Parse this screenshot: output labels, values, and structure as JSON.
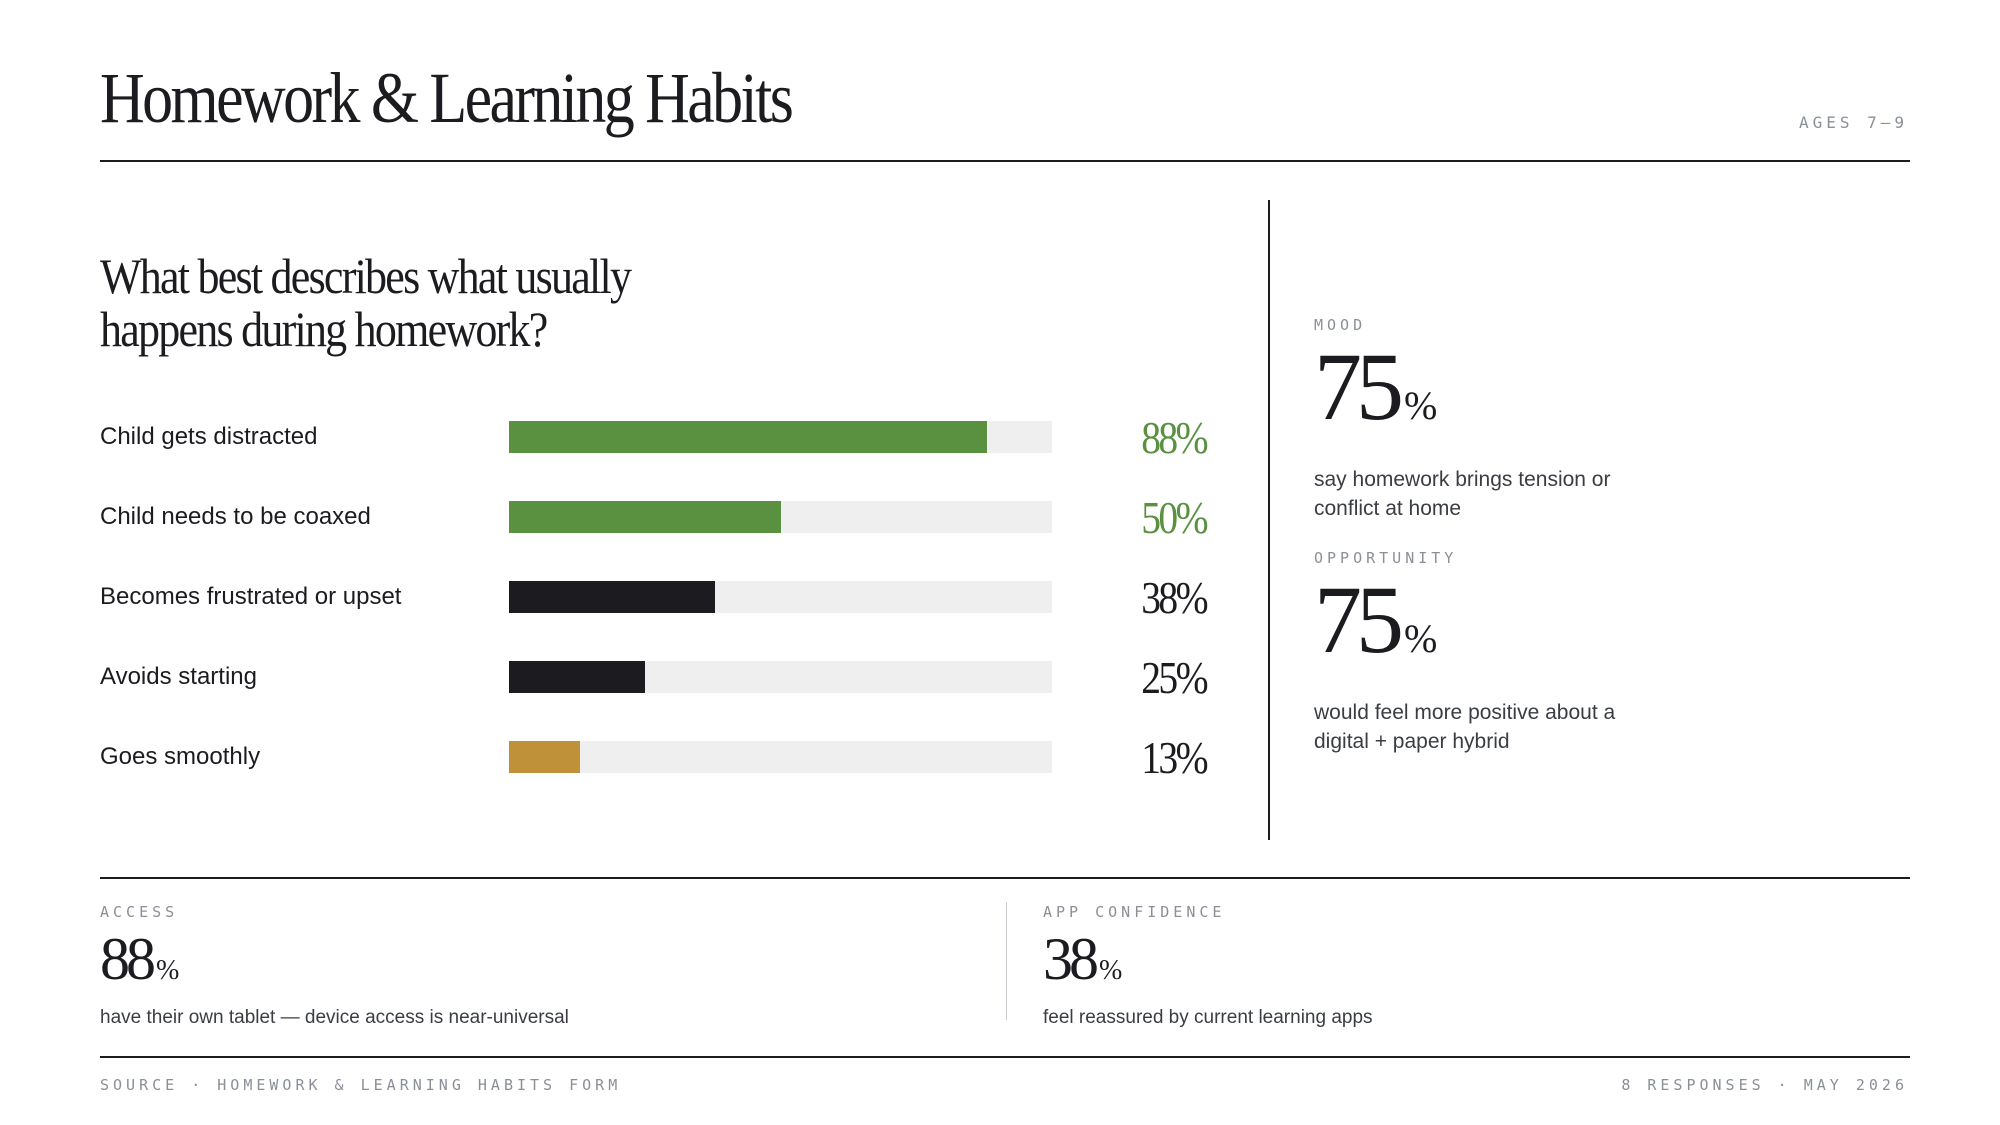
{
  "header": {
    "title": "Homework & Learning Habits",
    "tag": "AGES 7–9"
  },
  "question": "What best describes what usually happens during homework?",
  "colors": {
    "green": "#5a9140",
    "dark": "#1c1c20",
    "gold": "#bf923a",
    "track": "#efeff0"
  },
  "chart_data": {
    "type": "bar",
    "orientation": "horizontal",
    "title": "What best describes what usually happens during homework?",
    "categories": [
      "Child gets distracted",
      "Child needs to be coaxed",
      "Becomes frustrated or upset",
      "Avoids starting",
      "Goes smoothly"
    ],
    "values": [
      88,
      50,
      38,
      25,
      13
    ],
    "value_labels": [
      "88%",
      "50%",
      "38%",
      "25%",
      "13%"
    ],
    "bar_colors": [
      "#5a9140",
      "#5a9140",
      "#1c1c20",
      "#1c1c20",
      "#bf923a"
    ],
    "value_label_colors": [
      "#5a9140",
      "#5a9140",
      "#1c1c20",
      "#1c1c20",
      "#1c1c20"
    ],
    "xlim": [
      0,
      100
    ],
    "grid": false
  },
  "side_stats": [
    {
      "eyebrow": "MOOD",
      "number": "75",
      "unit": "%",
      "desc": "say homework brings tension or conflict at home"
    },
    {
      "eyebrow": "OPPORTUNITY",
      "number": "75",
      "unit": "%",
      "desc": "would feel more positive about a digital + paper hybrid"
    }
  ],
  "bottom_stats": [
    {
      "eyebrow": "ACCESS",
      "number": "88",
      "unit": "%",
      "desc": "have their own tablet — device access is near-universal"
    },
    {
      "eyebrow": "APP CONFIDENCE",
      "number": "38",
      "unit": "%",
      "desc": "feel reassured by current learning apps"
    }
  ],
  "footer": {
    "left": "SOURCE · HOMEWORK & LEARNING HABITS FORM",
    "right": "8 RESPONSES · MAY 2026"
  }
}
